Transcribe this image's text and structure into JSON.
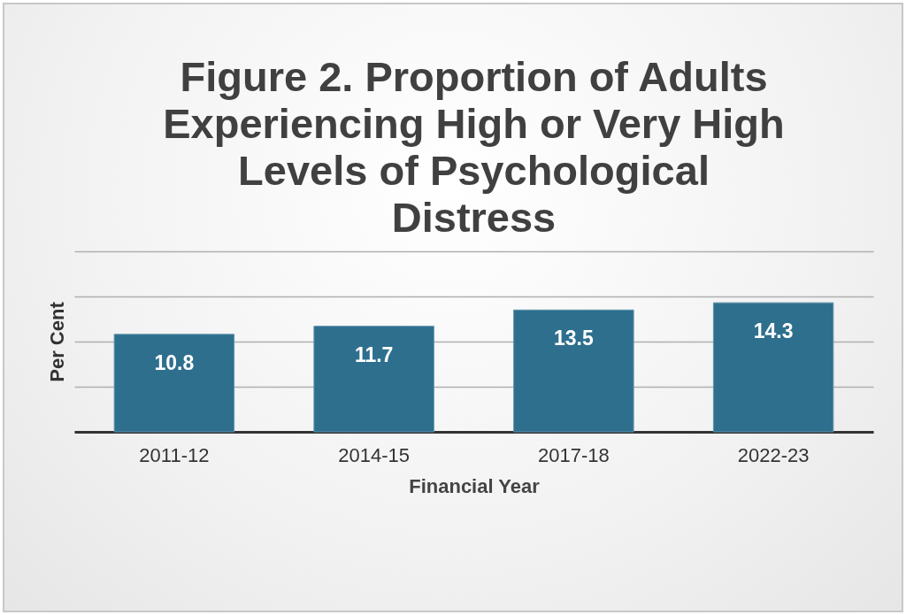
{
  "chart_data": {
    "type": "bar",
    "title": "Figure 2. Proportion of Adults Experiencing High or Very High Levels of Psychological Distress",
    "xlabel": "Financial Year",
    "ylabel": "Per Cent",
    "categories": [
      "2011-12",
      "2014-15",
      "2017-18",
      "2022-23"
    ],
    "values": [
      10.8,
      11.7,
      13.5,
      14.3
    ],
    "color": "#2e6f8e",
    "ylim": [
      0,
      20
    ],
    "yticks": [
      {
        "value": 0,
        "label": null
      },
      {
        "value": 5,
        "label": null
      },
      {
        "value": 10,
        "label": null
      },
      {
        "value": 15,
        "label": null
      },
      {
        "value": 20,
        "label": null
      }
    ],
    "grid": "y",
    "tick_labels": "x",
    "data_labels": true
  }
}
